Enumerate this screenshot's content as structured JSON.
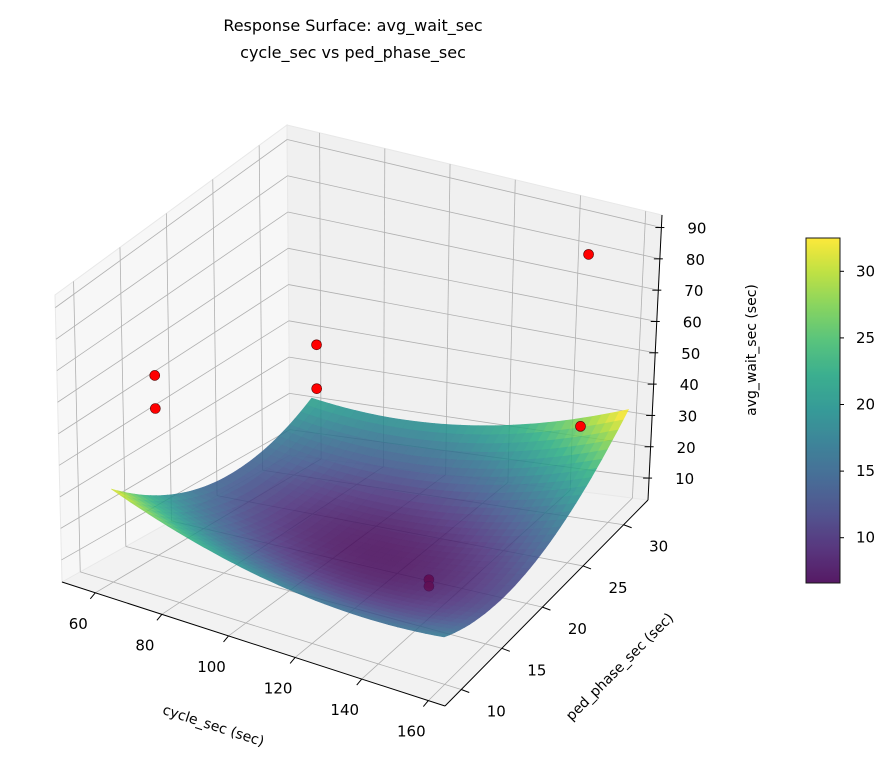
{
  "chart_data": {
    "type": "surface3d",
    "title": "Response Surface: avg_wait_sec",
    "subtitle": "cycle_sec vs ped_phase_sec",
    "xlabel": "cycle_sec (sec)",
    "ylabel": "ped_phase_sec (sec)",
    "zlabel": "avg_wait_sec (sec)",
    "xlim": [
      50,
      165
    ],
    "ylim": [
      8,
      33
    ],
    "zlim": [
      3,
      94
    ],
    "x_ticks": [
      60,
      80,
      100,
      120,
      140,
      160
    ],
    "y_ticks": [
      10,
      15,
      20,
      25,
      30
    ],
    "z_ticks": [
      10,
      20,
      30,
      40,
      50,
      60,
      70,
      80,
      90
    ],
    "grid": true,
    "colormap": "viridis",
    "surface_alpha": 0.85,
    "surface": {
      "x_range": [
        60,
        160
      ],
      "y_range": [
        10,
        32
      ],
      "model": "z = 7 + 0.00273*(x-115)^2 + 0.1*(y-20)^2 + 0.01227*(x-115)*(y-20)",
      "z_min_approx": 7,
      "z_max_approx": 32
    },
    "observed_points": {
      "color": "#ff0000",
      "points": [
        {
          "x": 57,
          "y": 16,
          "z": 55
        },
        {
          "x": 57,
          "y": 16,
          "z": 45
        },
        {
          "x": 87,
          "y": 23,
          "z": 58
        },
        {
          "x": 87,
          "y": 23,
          "z": 45
        },
        {
          "x": 151,
          "y": 30,
          "z": 85
        },
        {
          "x": 149,
          "y": 30.5,
          "z": 30
        },
        {
          "x": 135,
          "y": 18,
          "z": 9
        },
        {
          "x": 135,
          "y": 18,
          "z": 7
        }
      ]
    },
    "colorbar": {
      "range": [
        6.6,
        32.5
      ],
      "ticks": [
        10,
        15,
        20,
        25,
        30
      ]
    }
  }
}
